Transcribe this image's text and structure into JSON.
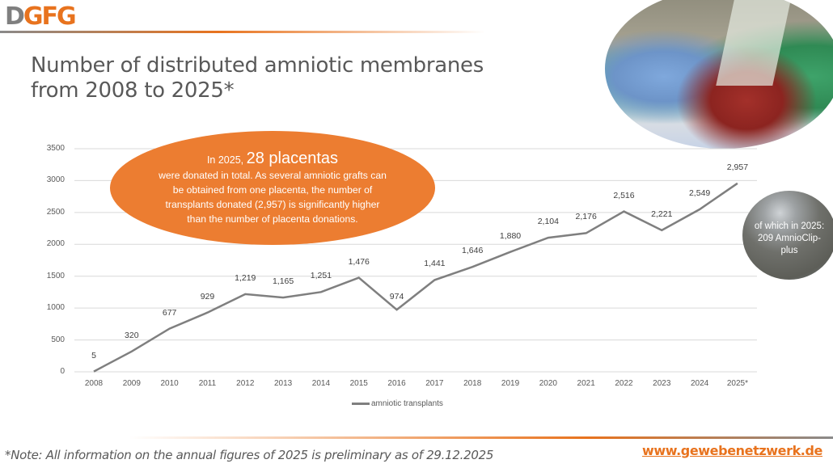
{
  "header": {
    "logo_part1": "D",
    "logo_part2": "GFG",
    "title_line1": "Number of distributed amniotic membranes",
    "title_line2": "from 2008 to 2025*"
  },
  "callout": {
    "prefix": "In 2025, ",
    "highlight": "28 placentas",
    "body": "were donated in total. As several amniotic grafts can be obtained from one placenta, the number of transplants donated (2,957) is significantly higher than the number of placenta donations."
  },
  "side_note": {
    "text": "of which in 2025: 209 AmnioClip-plus"
  },
  "footer": {
    "note": "*Note: All information on the annual figures of 2025 is preliminary as of 29.12.2025",
    "url": "www.gewebenetzwerk.de"
  },
  "colors": {
    "accent": "#e8731e",
    "callout": "#ec7d31",
    "line": "#7f7f7f",
    "grid": "#d9d9d9",
    "text": "#595959"
  },
  "chart_data": {
    "type": "line",
    "title": "Number of distributed amniotic membranes from 2008 to 2025*",
    "xlabel": "",
    "ylabel": "",
    "categories": [
      "2008",
      "2009",
      "2010",
      "2011",
      "2012",
      "2013",
      "2014",
      "2015",
      "2016",
      "2017",
      "2018",
      "2019",
      "2020",
      "2021",
      "2022",
      "2023",
      "2024",
      "2025*"
    ],
    "series": [
      {
        "name": "amniotic transplants",
        "values": [
          5,
          320,
          677,
          929,
          1219,
          1165,
          1251,
          1476,
          974,
          1441,
          1646,
          1880,
          2104,
          2176,
          2516,
          2221,
          2549,
          2957
        ],
        "labels": [
          "5",
          "320",
          "677",
          "929",
          "1,219",
          "1,165",
          "1,251",
          "1,476",
          "974",
          "1,441",
          "1,646",
          "1,880",
          "2,104",
          "2,176",
          "2,516",
          "2,221",
          "2,549",
          "2,957"
        ]
      }
    ],
    "yticks": [
      "0",
      "500",
      "1000",
      "1500",
      "2000",
      "2500",
      "3000",
      "3500"
    ],
    "ylim": [
      0,
      3500
    ],
    "grid": true,
    "legend_position": "bottom"
  }
}
